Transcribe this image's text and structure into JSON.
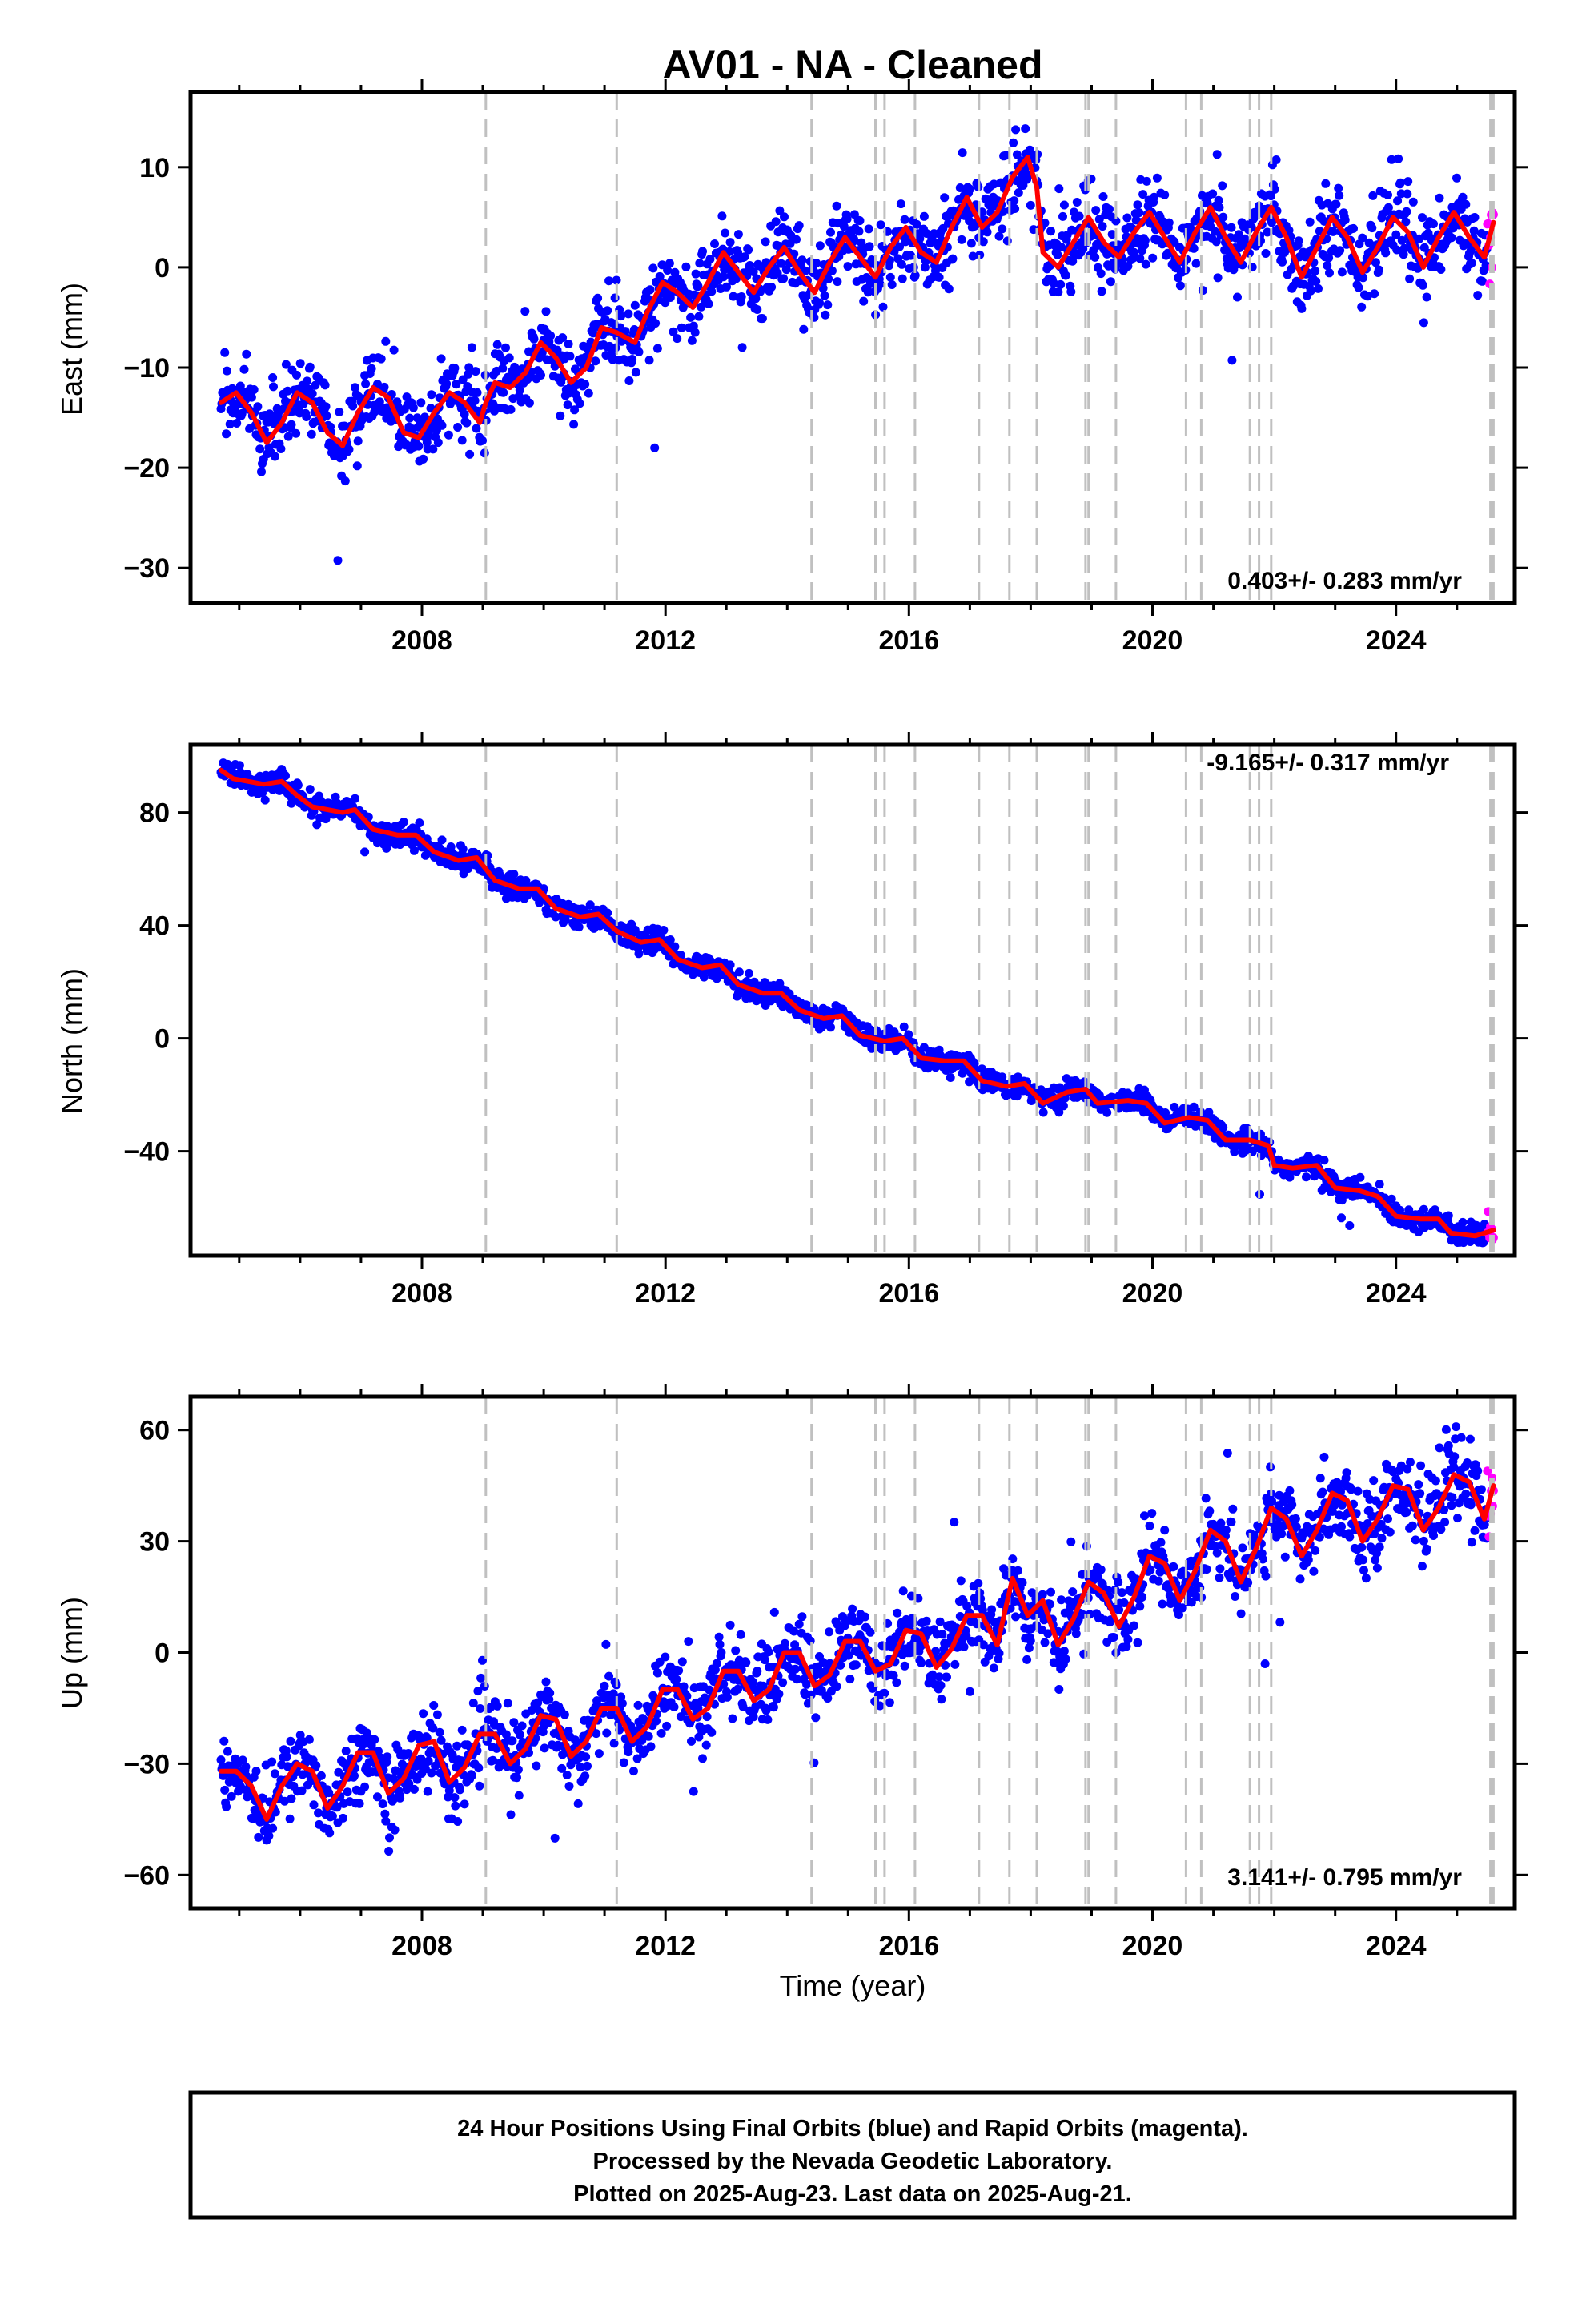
{
  "figure": {
    "title": "AV01  - NA - Cleaned"
  },
  "colors": {
    "final_orbits": "#0000ff",
    "rapid_orbits": "#ff00ff",
    "model_fit": "#ff0000",
    "event_lines": "#c0c0c0",
    "frame": "#000000"
  },
  "chart_data": [
    {
      "type": "scatter",
      "component": "east",
      "ylabel": "East (mm)",
      "xlim": [
        2004.2,
        2025.95
      ],
      "ylim": [
        -33.5,
        17.5
      ],
      "yticks": [
        -30,
        -20,
        -10,
        0,
        10
      ],
      "xticks": [
        2008,
        2012,
        2016,
        2020,
        2024
      ],
      "rate_text": "0.403+/- 0.283 mm/yr",
      "rate_position": "bottom-right",
      "model": {
        "points": [
          [
            2004.7,
            -13.5
          ],
          [
            2004.95,
            -12.5
          ],
          [
            2005.2,
            -14.5
          ],
          [
            2005.45,
            -17.5
          ],
          [
            2005.7,
            -15.5
          ],
          [
            2005.95,
            -12.5
          ],
          [
            2006.2,
            -13.5
          ],
          [
            2006.45,
            -16.5
          ],
          [
            2006.7,
            -17.8
          ],
          [
            2006.95,
            -14.5
          ],
          [
            2007.2,
            -12
          ],
          [
            2007.45,
            -13
          ],
          [
            2007.7,
            -16.5
          ],
          [
            2007.95,
            -17
          ],
          [
            2008.2,
            -14.5
          ],
          [
            2008.45,
            -12.5
          ],
          [
            2008.7,
            -13.5
          ],
          [
            2008.95,
            -15.5
          ],
          [
            2009.05,
            -13.5
          ],
          [
            2009.2,
            -11.5
          ],
          [
            2009.45,
            -12
          ],
          [
            2009.7,
            -10.5
          ],
          [
            2009.95,
            -7.5
          ],
          [
            2010.2,
            -9
          ],
          [
            2010.45,
            -11.5
          ],
          [
            2010.7,
            -10
          ],
          [
            2010.95,
            -6
          ],
          [
            2011.2,
            -6.5
          ],
          [
            2011.5,
            -7.5
          ],
          [
            2011.7,
            -4.5
          ],
          [
            2011.95,
            -1.5
          ],
          [
            2012.2,
            -2.5
          ],
          [
            2012.45,
            -4
          ],
          [
            2012.7,
            -1.5
          ],
          [
            2012.95,
            1.5
          ],
          [
            2013.2,
            -0.5
          ],
          [
            2013.45,
            -2.5
          ],
          [
            2013.7,
            0
          ],
          [
            2013.95,
            2
          ],
          [
            2014.2,
            -0.5
          ],
          [
            2014.45,
            -2.5
          ],
          [
            2014.7,
            0.5
          ],
          [
            2014.95,
            3
          ],
          [
            2015.2,
            1
          ],
          [
            2015.45,
            -1
          ],
          [
            2015.7,
            2
          ],
          [
            2015.95,
            4
          ],
          [
            2016.2,
            1.5
          ],
          [
            2016.45,
            0.5
          ],
          [
            2016.7,
            4
          ],
          [
            2016.95,
            7
          ],
          [
            2017.2,
            4
          ],
          [
            2017.45,
            5.5
          ],
          [
            2017.7,
            9
          ],
          [
            2017.95,
            11
          ],
          [
            2018.1,
            8
          ],
          [
            2018.2,
            1.5
          ],
          [
            2018.45,
            0
          ],
          [
            2018.7,
            2.5
          ],
          [
            2018.95,
            5
          ],
          [
            2019.2,
            2.5
          ],
          [
            2019.45,
            1
          ],
          [
            2019.7,
            3.5
          ],
          [
            2019.95,
            5.5
          ],
          [
            2020.2,
            3
          ],
          [
            2020.45,
            0.5
          ],
          [
            2020.7,
            3.5
          ],
          [
            2020.95,
            6
          ],
          [
            2021.2,
            3
          ],
          [
            2021.45,
            0.5
          ],
          [
            2021.7,
            3.5
          ],
          [
            2021.95,
            6
          ],
          [
            2022.2,
            3
          ],
          [
            2022.45,
            -1
          ],
          [
            2022.7,
            2
          ],
          [
            2022.95,
            5
          ],
          [
            2023.2,
            3
          ],
          [
            2023.45,
            -0.5
          ],
          [
            2023.7,
            2
          ],
          [
            2023.95,
            5
          ],
          [
            2024.2,
            3.5
          ],
          [
            2024.45,
            0
          ],
          [
            2024.7,
            3
          ],
          [
            2024.95,
            5.5
          ],
          [
            2025.2,
            3
          ],
          [
            2025.45,
            1
          ],
          [
            2025.6,
            4.5
          ]
        ]
      }
    },
    {
      "type": "scatter",
      "component": "north",
      "ylabel": "North (mm)",
      "xlim": [
        2004.2,
        2025.95
      ],
      "ylim": [
        -77,
        104
      ],
      "yticks": [
        -40,
        0,
        40,
        80
      ],
      "xticks": [
        2008,
        2012,
        2016,
        2020,
        2024
      ],
      "rate_text": "-9.165+/- 0.317 mm/yr",
      "rate_position": "top-right",
      "model": {
        "points": [
          [
            2004.7,
            95
          ],
          [
            2004.9,
            92
          ],
          [
            2005.4,
            90
          ],
          [
            2005.7,
            91
          ],
          [
            2005.95,
            86
          ],
          [
            2006.2,
            82
          ],
          [
            2006.7,
            80
          ],
          [
            2006.9,
            81
          ],
          [
            2007.2,
            74
          ],
          [
            2007.6,
            72
          ],
          [
            2007.9,
            72
          ],
          [
            2008.2,
            66
          ],
          [
            2008.6,
            63
          ],
          [
            2008.9,
            64
          ],
          [
            2009.2,
            56
          ],
          [
            2009.6,
            53
          ],
          [
            2009.9,
            53
          ],
          [
            2010.2,
            46
          ],
          [
            2010.6,
            43
          ],
          [
            2010.9,
            44
          ],
          [
            2011.2,
            38
          ],
          [
            2011.6,
            34
          ],
          [
            2011.9,
            35
          ],
          [
            2012.2,
            28
          ],
          [
            2012.6,
            25
          ],
          [
            2012.9,
            26
          ],
          [
            2013.2,
            19
          ],
          [
            2013.6,
            16
          ],
          [
            2013.9,
            16
          ],
          [
            2014.2,
            10
          ],
          [
            2014.6,
            7
          ],
          [
            2014.9,
            8
          ],
          [
            2015.2,
            1
          ],
          [
            2015.6,
            -1
          ],
          [
            2015.9,
            0
          ],
          [
            2016.2,
            -7
          ],
          [
            2016.6,
            -8
          ],
          [
            2016.9,
            -8
          ],
          [
            2017.2,
            -15
          ],
          [
            2017.6,
            -17
          ],
          [
            2017.9,
            -16
          ],
          [
            2018.2,
            -23
          ],
          [
            2018.6,
            -19
          ],
          [
            2018.9,
            -18
          ],
          [
            2019.1,
            -23
          ],
          [
            2019.6,
            -22
          ],
          [
            2019.9,
            -23
          ],
          [
            2020.2,
            -30
          ],
          [
            2020.6,
            -28
          ],
          [
            2020.9,
            -29
          ],
          [
            2021.2,
            -36
          ],
          [
            2021.6,
            -36
          ],
          [
            2021.9,
            -38
          ],
          [
            2022.0,
            -45
          ],
          [
            2022.3,
            -46
          ],
          [
            2022.7,
            -45
          ],
          [
            2023.0,
            -53
          ],
          [
            2023.4,
            -54
          ],
          [
            2023.7,
            -56
          ],
          [
            2024.0,
            -63
          ],
          [
            2024.4,
            -64
          ],
          [
            2024.7,
            -64
          ],
          [
            2024.9,
            -69
          ],
          [
            2025.3,
            -70
          ],
          [
            2025.6,
            -68
          ]
        ]
      }
    },
    {
      "type": "scatter",
      "component": "up",
      "ylabel": "Up (mm)",
      "xlabel": "Time (year)",
      "xlim": [
        2004.2,
        2025.95
      ],
      "ylim": [
        -69,
        69
      ],
      "yticks": [
        -60,
        -30,
        0,
        30,
        60
      ],
      "xticks": [
        2008,
        2012,
        2016,
        2020,
        2024
      ],
      "rate_text": "3.141+/- 0.795 mm/yr",
      "rate_position": "bottom-right",
      "model": {
        "points": [
          [
            2004.7,
            -32
          ],
          [
            2004.95,
            -32
          ],
          [
            2005.2,
            -36
          ],
          [
            2005.45,
            -45
          ],
          [
            2005.7,
            -36
          ],
          [
            2005.95,
            -30
          ],
          [
            2006.2,
            -32
          ],
          [
            2006.45,
            -42
          ],
          [
            2006.7,
            -36
          ],
          [
            2006.95,
            -27
          ],
          [
            2007.2,
            -27
          ],
          [
            2007.45,
            -38
          ],
          [
            2007.7,
            -34
          ],
          [
            2007.95,
            -25
          ],
          [
            2008.2,
            -24
          ],
          [
            2008.45,
            -35
          ],
          [
            2008.7,
            -31
          ],
          [
            2008.95,
            -22
          ],
          [
            2009.2,
            -22
          ],
          [
            2009.45,
            -30
          ],
          [
            2009.7,
            -26
          ],
          [
            2009.95,
            -17
          ],
          [
            2010.2,
            -18
          ],
          [
            2010.45,
            -28
          ],
          [
            2010.7,
            -24
          ],
          [
            2010.95,
            -15
          ],
          [
            2011.2,
            -15
          ],
          [
            2011.45,
            -24
          ],
          [
            2011.7,
            -20
          ],
          [
            2011.95,
            -10
          ],
          [
            2012.2,
            -10
          ],
          [
            2012.45,
            -18
          ],
          [
            2012.7,
            -15
          ],
          [
            2012.95,
            -5
          ],
          [
            2013.2,
            -5
          ],
          [
            2013.45,
            -13
          ],
          [
            2013.7,
            -10
          ],
          [
            2013.95,
            0
          ],
          [
            2014.2,
            0
          ],
          [
            2014.45,
            -9
          ],
          [
            2014.7,
            -6
          ],
          [
            2014.95,
            3
          ],
          [
            2015.2,
            3
          ],
          [
            2015.45,
            -5
          ],
          [
            2015.7,
            -3
          ],
          [
            2015.95,
            6
          ],
          [
            2016.2,
            5
          ],
          [
            2016.45,
            -4
          ],
          [
            2016.7,
            1
          ],
          [
            2016.95,
            10
          ],
          [
            2017.2,
            10
          ],
          [
            2017.45,
            2
          ],
          [
            2017.7,
            20
          ],
          [
            2017.95,
            10
          ],
          [
            2018.2,
            14
          ],
          [
            2018.45,
            2
          ],
          [
            2018.7,
            9
          ],
          [
            2018.95,
            19
          ],
          [
            2019.2,
            16
          ],
          [
            2019.45,
            7
          ],
          [
            2019.7,
            15
          ],
          [
            2019.95,
            26
          ],
          [
            2020.2,
            24
          ],
          [
            2020.45,
            14
          ],
          [
            2020.7,
            22
          ],
          [
            2020.95,
            33
          ],
          [
            2021.2,
            30
          ],
          [
            2021.45,
            19
          ],
          [
            2021.7,
            28
          ],
          [
            2021.95,
            39
          ],
          [
            2022.2,
            36
          ],
          [
            2022.45,
            26
          ],
          [
            2022.7,
            33
          ],
          [
            2022.95,
            43
          ],
          [
            2023.2,
            41
          ],
          [
            2023.45,
            30
          ],
          [
            2023.7,
            36
          ],
          [
            2023.95,
            45
          ],
          [
            2024.2,
            44
          ],
          [
            2024.45,
            33
          ],
          [
            2024.7,
            39
          ],
          [
            2024.95,
            48
          ],
          [
            2025.2,
            46
          ],
          [
            2025.45,
            36
          ],
          [
            2025.6,
            45
          ]
        ]
      }
    }
  ],
  "footer": {
    "line1": "24 Hour Positions Using Final Orbits (blue) and Rapid Orbits (magenta).",
    "line2": "Processed by the Nevada Geodetic Laboratory.",
    "line3": "Plotted on 2025-Aug-23. Last data on 2025-Aug-21."
  }
}
